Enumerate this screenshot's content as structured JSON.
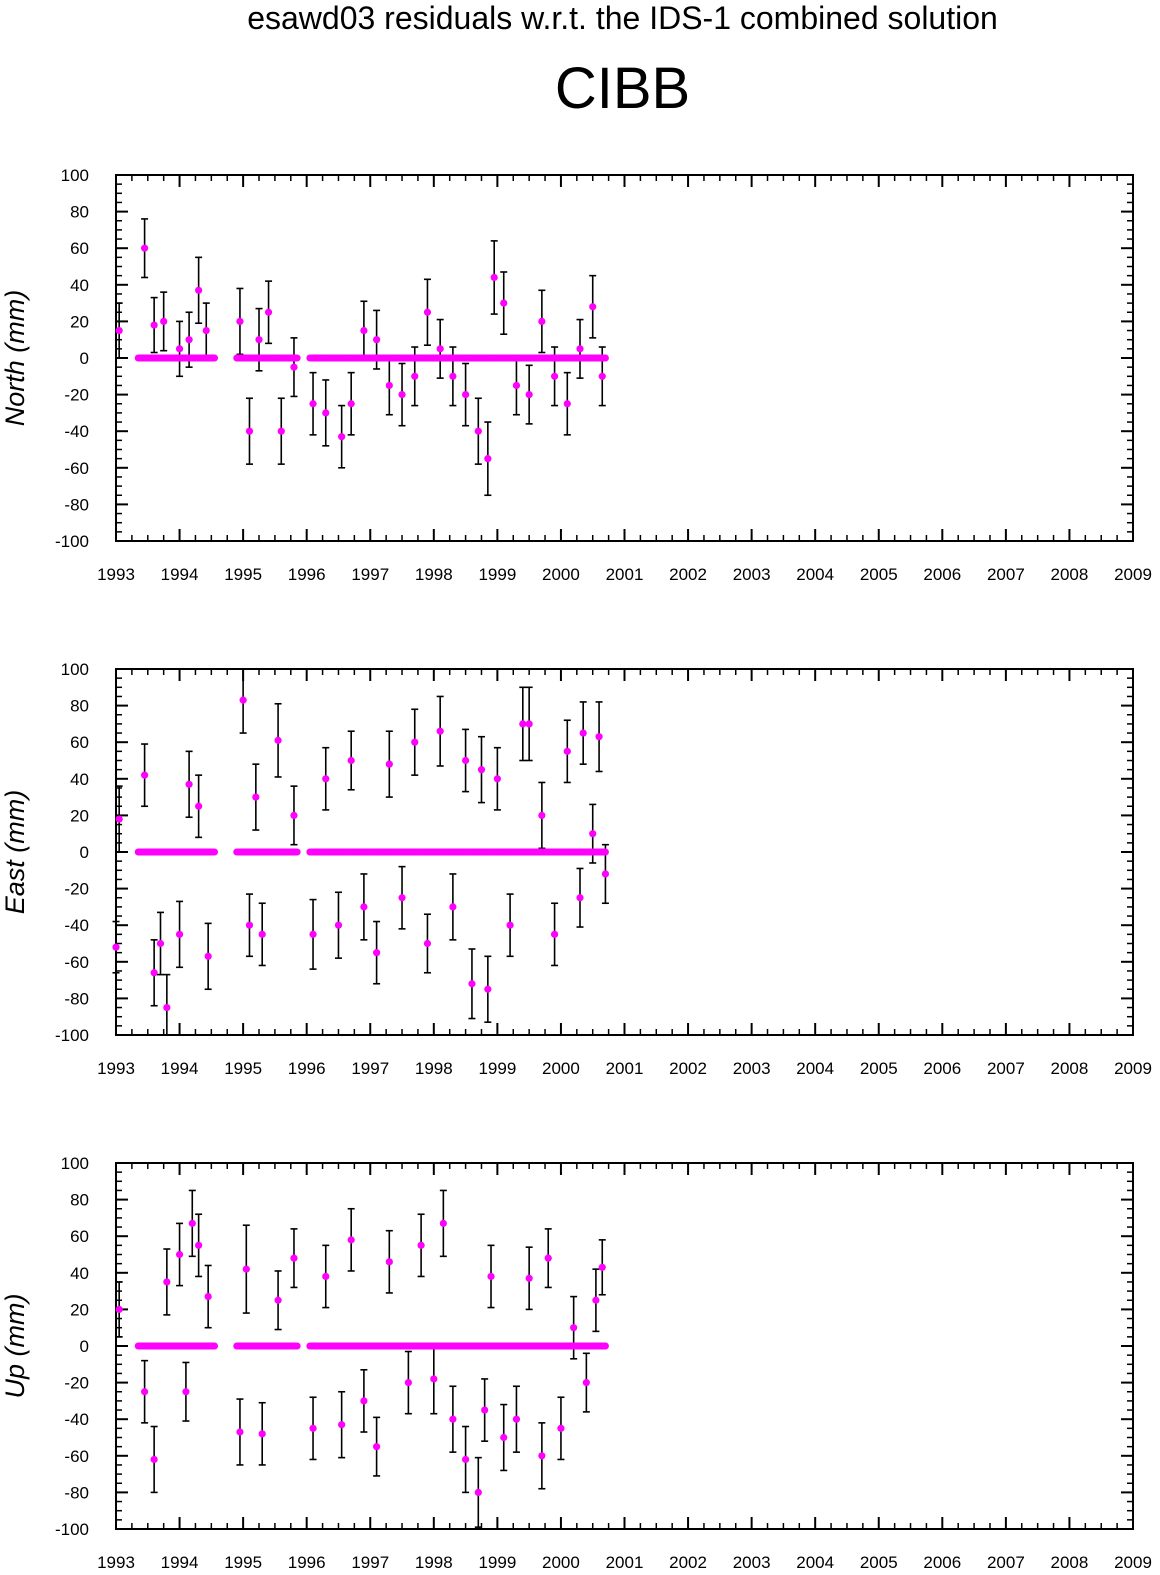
{
  "title": "esawd03 residuals w.r.t. the IDS-1 combined solution",
  "station": "CIBB",
  "colors": {
    "point": "#ff00ff",
    "errorbar": "#000000",
    "axis": "#000000"
  },
  "chart_data": [
    {
      "type": "scatter",
      "ylabel": "North (mm)",
      "xlim": [
        1993,
        2009
      ],
      "ylim": [
        -100,
        100
      ],
      "x_ticks": [
        "1993",
        "1994",
        "1995",
        "1996",
        "1997",
        "1998",
        "1999",
        "2000",
        "2001",
        "2002",
        "2003",
        "2004",
        "2005",
        "2006",
        "2007",
        "2008",
        "2009"
      ],
      "y_ticks": [
        "100",
        "80",
        "60",
        "40",
        "20",
        "0",
        "-20",
        "-40",
        "-60",
        "-80",
        "-100"
      ],
      "series": [
        {
          "x": [
            1993.05,
            1993.45,
            1993.6,
            1993.75,
            1994.0,
            1994.15,
            1994.3,
            1994.42,
            1994.95,
            1995.1,
            1995.25,
            1995.4,
            1995.6,
            1995.8,
            1996.1,
            1996.3,
            1996.55,
            1996.7,
            1996.9,
            1997.1,
            1997.3,
            1997.5,
            1997.7,
            1997.9,
            1998.1,
            1998.3,
            1998.5,
            1998.7,
            1998.85,
            1998.95,
            1999.1,
            1999.3,
            1999.5,
            1999.7,
            1999.9,
            2000.1,
            2000.3,
            2000.5,
            2000.65
          ],
          "y": [
            15,
            60,
            18,
            20,
            5,
            10,
            37,
            15,
            20,
            -40,
            10,
            25,
            -40,
            -5,
            -25,
            -30,
            -43,
            -25,
            15,
            10,
            -15,
            -20,
            -10,
            25,
            5,
            -10,
            -20,
            -40,
            -55,
            44,
            30,
            -15,
            -20,
            20,
            -10,
            -25,
            5,
            28,
            -10
          ],
          "err": [
            15,
            16,
            15,
            16,
            15,
            15,
            18,
            15,
            18,
            18,
            17,
            17,
            18,
            16,
            17,
            18,
            17,
            17,
            16,
            16,
            16,
            17,
            16,
            18,
            16,
            16,
            17,
            18,
            20,
            20,
            17,
            16,
            16,
            17,
            16,
            17,
            16,
            17,
            16
          ]
        },
        {
          "name": "",
          "x": [
            1993.35,
            1994.55
          ],
          "y": [
            0,
            0
          ]
        },
        {
          "name": "",
          "x": [
            1994.9,
            1995.85
          ],
          "y": [
            0,
            0
          ]
        },
        {
          "name": "",
          "x": [
            1996.05,
            2000.7
          ],
          "y": [
            0,
            0
          ]
        }
      ]
    },
    {
      "type": "scatter",
      "ylabel": "East (mm)",
      "xlim": [
        1993,
        2009
      ],
      "ylim": [
        -100,
        100
      ],
      "x_ticks": [
        "1993",
        "1994",
        "1995",
        "1996",
        "1997",
        "1998",
        "1999",
        "2000",
        "2001",
        "2002",
        "2003",
        "2004",
        "2005",
        "2006",
        "2007",
        "2008",
        "2009"
      ],
      "y_ticks": [
        "100",
        "80",
        "60",
        "40",
        "20",
        "0",
        "-20",
        "-40",
        "-60",
        "-80",
        "-100"
      ],
      "series": [
        {
          "x": [
            1993.0,
            1993.05,
            1993.45,
            1993.6,
            1993.7,
            1993.8,
            1994.0,
            1994.15,
            1994.3,
            1994.45,
            1995.0,
            1995.1,
            1995.2,
            1995.3,
            1995.55,
            1995.8,
            1996.1,
            1996.3,
            1996.5,
            1996.7,
            1996.9,
            1997.1,
            1997.3,
            1997.5,
            1997.7,
            1997.9,
            1998.1,
            1998.3,
            1998.5,
            1998.6,
            1998.75,
            1998.85,
            1999.0,
            1999.2,
            1999.4,
            1999.5,
            1999.7,
            1999.9,
            2000.1,
            2000.3,
            2000.35,
            2000.5,
            2000.6,
            2000.7
          ],
          "y": [
            -52,
            18,
            42,
            -66,
            -50,
            -85,
            -45,
            37,
            25,
            -57,
            83,
            -40,
            30,
            -45,
            61,
            20,
            -45,
            40,
            -40,
            50,
            -30,
            -55,
            48,
            -25,
            60,
            -50,
            66,
            -30,
            50,
            -72,
            45,
            -75,
            40,
            -40,
            70,
            70,
            20,
            -45,
            55,
            -25,
            65,
            10,
            63,
            -12
          ],
          "err": [
            14,
            18,
            17,
            18,
            17,
            18,
            18,
            18,
            17,
            18,
            18,
            17,
            18,
            17,
            20,
            16,
            19,
            17,
            18,
            16,
            18,
            17,
            18,
            17,
            18,
            16,
            19,
            18,
            17,
            19,
            18,
            18,
            17,
            17,
            20,
            20,
            18,
            17,
            17,
            16,
            17,
            16,
            19,
            16
          ]
        },
        {
          "name": "",
          "x": [
            1993.35,
            1994.55
          ],
          "y": [
            0,
            0
          ]
        },
        {
          "name": "",
          "x": [
            1994.9,
            1995.85
          ],
          "y": [
            0,
            0
          ]
        },
        {
          "name": "",
          "x": [
            1996.05,
            2000.7
          ],
          "y": [
            0,
            0
          ]
        }
      ]
    },
    {
      "type": "scatter",
      "ylabel": "Up (mm)",
      "xlim": [
        1993,
        2009
      ],
      "ylim": [
        -100,
        100
      ],
      "x_ticks": [
        "1993",
        "1994",
        "1995",
        "1996",
        "1997",
        "1998",
        "1999",
        "2000",
        "2001",
        "2002",
        "2003",
        "2004",
        "2005",
        "2006",
        "2007",
        "2008",
        "2009"
      ],
      "y_ticks": [
        "100",
        "80",
        "60",
        "40",
        "20",
        "0",
        "-20",
        "-40",
        "-60",
        "-80",
        "-100"
      ],
      "series": [
        {
          "x": [
            1993.05,
            1993.45,
            1993.6,
            1993.8,
            1994.0,
            1994.1,
            1994.2,
            1994.3,
            1994.45,
            1994.95,
            1995.05,
            1995.3,
            1995.55,
            1995.8,
            1996.1,
            1996.3,
            1996.55,
            1996.7,
            1996.9,
            1997.1,
            1997.3,
            1997.6,
            1997.8,
            1998.0,
            1998.15,
            1998.3,
            1998.5,
            1998.7,
            1998.8,
            1998.9,
            1999.1,
            1999.3,
            1999.5,
            1999.7,
            1999.8,
            2000.0,
            2000.2,
            2000.4,
            2000.55,
            2000.65
          ],
          "y": [
            20,
            -25,
            -62,
            35,
            50,
            -25,
            67,
            55,
            27,
            -47,
            42,
            -48,
            25,
            48,
            -45,
            38,
            -43,
            58,
            -30,
            -55,
            46,
            -20,
            55,
            -18,
            67,
            -40,
            -62,
            -80,
            -35,
            38,
            -50,
            -40,
            37,
            -60,
            48,
            -45,
            10,
            -20,
            25,
            43
          ],
          "err": [
            15,
            17,
            18,
            18,
            17,
            16,
            18,
            17,
            17,
            18,
            24,
            17,
            16,
            16,
            17,
            17,
            18,
            17,
            17,
            16,
            17,
            17,
            17,
            19,
            18,
            18,
            18,
            19,
            17,
            17,
            18,
            18,
            17,
            18,
            16,
            17,
            17,
            16,
            17,
            15
          ]
        },
        {
          "name": "",
          "x": [
            1993.35,
            1994.55
          ],
          "y": [
            0,
            0
          ]
        },
        {
          "name": "",
          "x": [
            1994.9,
            1995.85
          ],
          "y": [
            0,
            0
          ]
        },
        {
          "name": "",
          "x": [
            1996.05,
            2000.7
          ],
          "y": [
            0,
            0
          ]
        }
      ]
    }
  ]
}
